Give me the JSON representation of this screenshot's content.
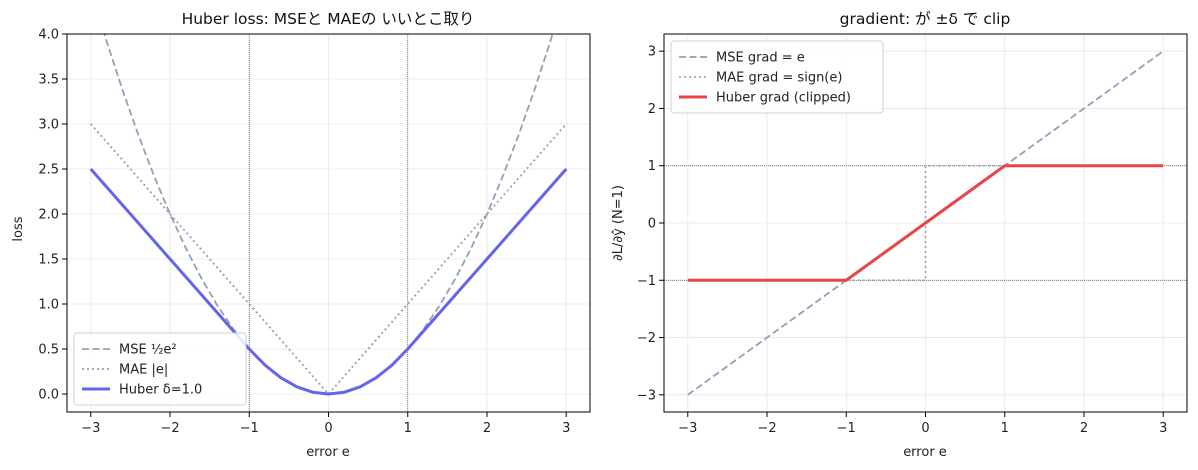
{
  "chart_data": [
    {
      "type": "line",
      "title": "Huber loss: MSEと MAEの いいとこ取り",
      "xlabel": "error e",
      "ylabel": "loss",
      "xlim": [
        -3.3,
        3.3
      ],
      "ylim": [
        -0.2,
        4.0
      ],
      "xticks": [
        "−3",
        "−2",
        "−1",
        "0",
        "1",
        "2",
        "3"
      ],
      "yticks": [
        "0.0",
        "0.5",
        "1.0",
        "1.5",
        "2.0",
        "2.5",
        "3.0",
        "3.5",
        "4.0"
      ],
      "grid": true,
      "legend_position": "lower-left",
      "reference_vlines": [
        -1,
        1
      ],
      "series": [
        {
          "name": "MSE ½e²",
          "style": "dashed",
          "color": "#8fa0b8",
          "x": [
            -3,
            -2.8,
            -2.6,
            -2.4,
            -2.2,
            -2,
            -1.8,
            -1.6,
            -1.4,
            -1.2,
            -1,
            -0.8,
            -0.6,
            -0.4,
            -0.2,
            0,
            0.2,
            0.4,
            0.6,
            0.8,
            1,
            1.2,
            1.4,
            1.6,
            1.8,
            2,
            2.2,
            2.4,
            2.6,
            2.8,
            3
          ],
          "y": [
            4.5,
            3.92,
            3.38,
            2.88,
            2.42,
            2.0,
            1.62,
            1.28,
            0.98,
            0.72,
            0.5,
            0.32,
            0.18,
            0.08,
            0.02,
            0.0,
            0.02,
            0.08,
            0.18,
            0.32,
            0.5,
            0.72,
            0.98,
            1.28,
            1.62,
            2.0,
            2.42,
            2.88,
            3.38,
            3.92,
            4.5
          ]
        },
        {
          "name": "MAE |e|",
          "style": "dotted",
          "color": "#9aa0a8",
          "x": [
            -3,
            0,
            3
          ],
          "y": [
            3.0,
            0.0,
            3.0
          ]
        },
        {
          "name": "Huber δ=1.0",
          "style": "solid",
          "color": "#6366e8",
          "x": [
            -3,
            -2,
            -1,
            -0.8,
            -0.6,
            -0.4,
            -0.2,
            0,
            0.2,
            0.4,
            0.6,
            0.8,
            1,
            2,
            3
          ],
          "y": [
            2.5,
            1.5,
            0.5,
            0.32,
            0.18,
            0.08,
            0.02,
            0.0,
            0.02,
            0.08,
            0.18,
            0.32,
            0.5,
            1.5,
            2.5
          ]
        }
      ]
    },
    {
      "type": "line",
      "title": "gradient: が ±δ で clip",
      "xlabel": "error e",
      "ylabel": "∂L/∂ŷ (N=1)",
      "xlim": [
        -3.3,
        3.3
      ],
      "ylim": [
        -3.3,
        3.3
      ],
      "xticks": [
        "−3",
        "−2",
        "−1",
        "0",
        "1",
        "2",
        "3"
      ],
      "yticks": [
        "−3",
        "−2",
        "−1",
        "0",
        "1",
        "2",
        "3"
      ],
      "grid": true,
      "legend_position": "upper-left",
      "reference_hlines": [
        -1,
        1
      ],
      "series": [
        {
          "name": "MSE grad = e",
          "style": "dashed",
          "color": "#8fa0b8",
          "x": [
            -3,
            3
          ],
          "y": [
            -3,
            3
          ]
        },
        {
          "name": "MAE grad = sign(e)",
          "style": "dotted",
          "color": "#9aa8c8",
          "x": [
            -3,
            0,
            0,
            3
          ],
          "y": [
            -1,
            -1,
            1,
            1
          ]
        },
        {
          "name": "Huber grad (clipped)",
          "style": "solid",
          "color": "#e84545",
          "x": [
            -3,
            -1,
            1,
            3
          ],
          "y": [
            -1,
            -1,
            1,
            1
          ]
        }
      ]
    }
  ]
}
